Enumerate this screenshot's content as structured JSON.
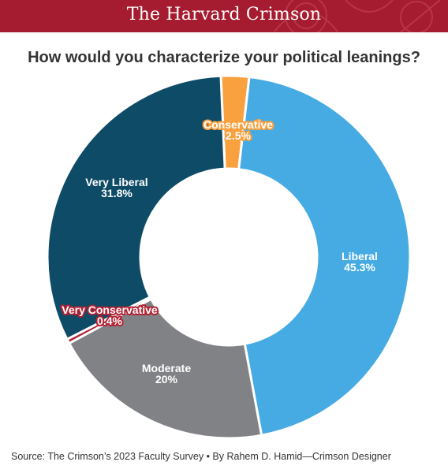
{
  "header": {
    "publication": "The Harvard Crimson"
  },
  "footer": {
    "source": "Source: The Crimson’s 2023 Faculty Survey • By Rahem D. Hamid—Crimson Designer"
  },
  "colors": {
    "masthead": "#a51c30",
    "very_liberal": "#0e4b66",
    "liberal": "#47abe3",
    "moderate": "#808285",
    "conservative": "#f9a03f",
    "very_conservative": "#b22234"
  },
  "chart_data": {
    "type": "pie",
    "donut": true,
    "title": "How would you characterize your political leanings?",
    "legend": "none",
    "slices": [
      {
        "label": "Conservative",
        "value": 2.5,
        "value_label": "2.5%",
        "color": "#f9a03f"
      },
      {
        "label": "Liberal",
        "value": 45.3,
        "value_label": "45.3%",
        "color": "#47abe3"
      },
      {
        "label": "Moderate",
        "value": 20,
        "value_label": "20%",
        "color": "#808285"
      },
      {
        "label": "Very Conservative",
        "value": 0.4,
        "value_label": "0.4%",
        "color": "#b22234"
      },
      {
        "label": "Very Liberal",
        "value": 31.8,
        "value_label": "31.8%",
        "color": "#0e4b66"
      }
    ]
  }
}
